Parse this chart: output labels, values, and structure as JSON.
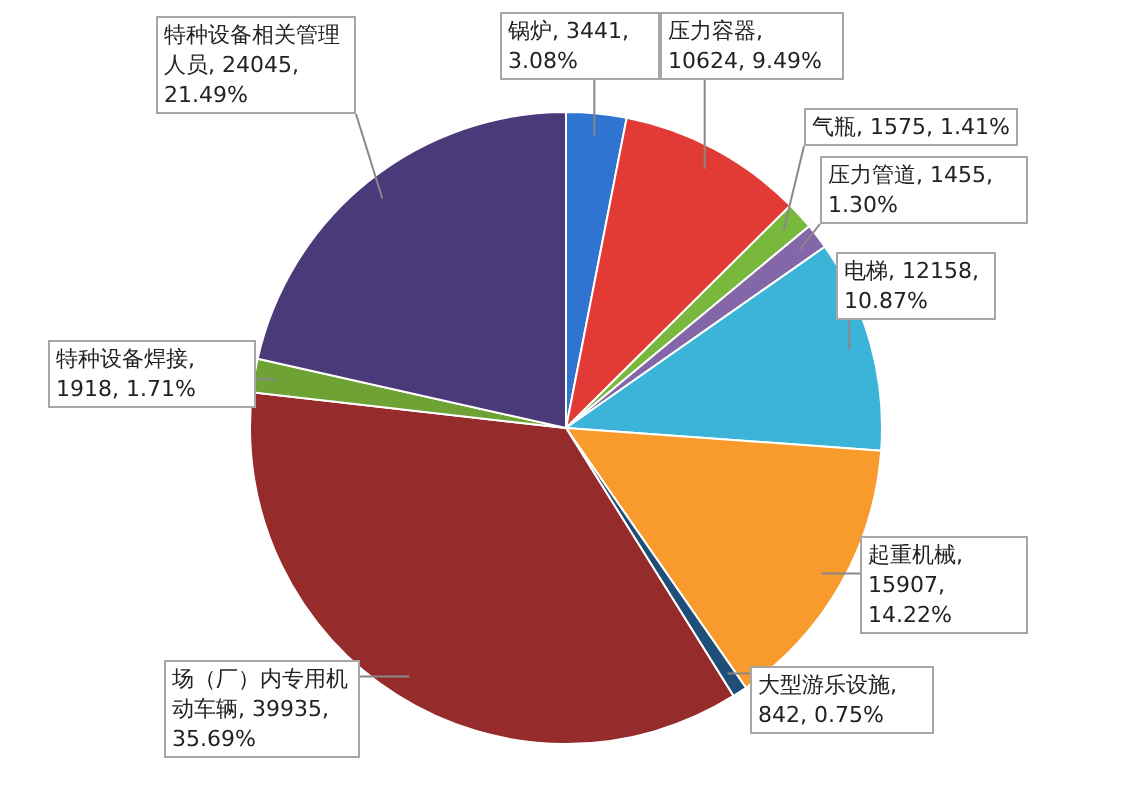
{
  "chart_data": {
    "type": "pie",
    "categories": [
      "锅炉",
      "压力容器",
      "气瓶",
      "压力管道",
      "电梯",
      "起重机械",
      "大型游乐设施",
      "场（厂）内专用机动车辆",
      "特种设备焊接",
      "特种设备相关管理人员"
    ],
    "values": [
      3441,
      10624,
      1575,
      1455,
      12158,
      15907,
      842,
      39935,
      1918,
      24045
    ],
    "value_labels": [
      ", 3441, 3.08%",
      ", 10624, 9.49%",
      ", 1575, 1.41%",
      ", 1455, 1.30%",
      ", 12158, 10.87%",
      ", 15907, 14.22%",
      ", 842, 0.75%",
      ", 39935, 35.69%",
      ", 1918, 1.71%",
      ", 24045, 21.49%"
    ],
    "colors": [
      "#2f74d0",
      "#e23a35",
      "#78b83c",
      "#8467a8",
      "#3cb3d9",
      "#f89b2c",
      "#1f4e79",
      "#952b2b",
      "#6fa234",
      "#4a3a7a"
    ]
  }
}
